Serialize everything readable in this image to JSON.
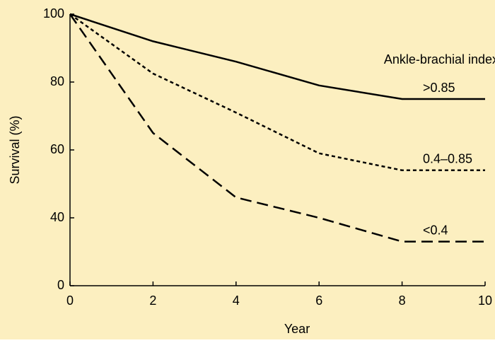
{
  "chart_data": {
    "type": "line",
    "x_label": "Year",
    "y_label": "Survival (%)",
    "legend_title": "Ankle-brachial index:",
    "x": [
      0,
      2,
      4,
      6,
      8,
      10
    ],
    "series": [
      {
        "name": ">0.85",
        "color": "#000000",
        "style": "solid",
        "values": [
          100,
          92,
          86,
          79,
          75,
          75
        ]
      },
      {
        "name": "0.4–0.85",
        "color": "#000000",
        "style": "dotted",
        "values": [
          100,
          82.5,
          71,
          59,
          54,
          54
        ]
      },
      {
        "name": "<0.4",
        "color": "#000000",
        "style": "dashed",
        "values": [
          100,
          65,
          46,
          40,
          33,
          33
        ]
      }
    ],
    "xlim": [
      0,
      10
    ],
    "xticks": [
      0,
      2,
      4,
      6,
      8,
      10
    ],
    "ylim": [
      20,
      100
    ],
    "yticks": [
      0,
      40,
      60,
      80,
      100
    ],
    "axis_break": true,
    "background": "#fcefc0"
  }
}
